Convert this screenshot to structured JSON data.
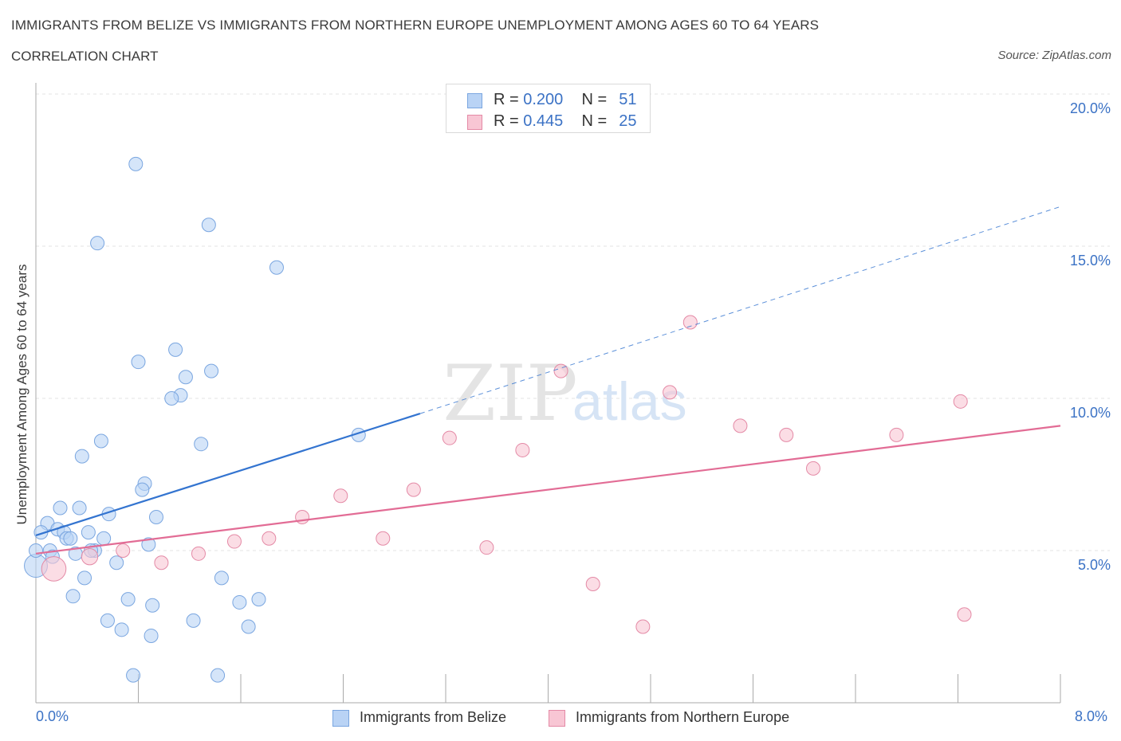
{
  "header": {
    "title": "IMMIGRANTS FROM BELIZE VS IMMIGRANTS FROM NORTHERN EUROPE UNEMPLOYMENT AMONG AGES 60 TO 64 YEARS",
    "subtitle": "CORRELATION CHART",
    "source": "Source: ZipAtlas.com"
  },
  "legend": {
    "rows": [
      {
        "r_label": "R =",
        "r_value": "0.200",
        "n_label": "N =",
        "n_value": "51"
      },
      {
        "r_label": "R =",
        "r_value": "0.445",
        "n_label": "N =",
        "n_value": "25"
      }
    ]
  },
  "bottom_legend": {
    "series1": "Immigrants from Belize",
    "series2": "Immigrants from Northern Europe"
  },
  "watermark": {
    "zip": "ZIP",
    "atlas": "atlas"
  },
  "colors": {
    "blue_fill": "#b9d3f5",
    "blue_stroke": "#7aa6e0",
    "blue_line": "#3374d0",
    "pink_fill": "#f8c6d4",
    "pink_stroke": "#e48aa6",
    "pink_line": "#e26c95",
    "tick_text": "#3b72c5",
    "grid": "#e3e3e3"
  },
  "chart_data": {
    "type": "scatter",
    "title": "IMMIGRANTS FROM BELIZE VS IMMIGRANTS FROM NORTHERN EUROPE UNEMPLOYMENT AMONG AGES 60 TO 64 YEARS",
    "xlabel": "",
    "ylabel": "Unemployment Among Ages 60 to 64 years",
    "xlim": [
      0,
      8
    ],
    "ylim": [
      0,
      20
    ],
    "x_tick_labels": [
      "0.0%",
      "8.0%"
    ],
    "y_tick_labels": [
      "5.0%",
      "10.0%",
      "15.0%",
      "20.0%"
    ],
    "y_ticks": [
      5,
      10,
      15,
      20
    ],
    "legend_position": "top-center",
    "series": [
      {
        "name": "Immigrants from Belize",
        "color": "blue",
        "trend": {
          "x0": 0.0,
          "y0": 5.5,
          "x1": 3.0,
          "y1": 9.5,
          "extend_to_x": 8.0,
          "extend_to_y": 16.3
        },
        "points": [
          {
            "x": 0.78,
            "y": 17.7,
            "s": 1
          },
          {
            "x": 1.35,
            "y": 15.7,
            "s": 1
          },
          {
            "x": 0.48,
            "y": 15.1,
            "s": 1
          },
          {
            "x": 1.88,
            "y": 14.3,
            "s": 1
          },
          {
            "x": 1.09,
            "y": 11.6,
            "s": 1
          },
          {
            "x": 0.8,
            "y": 11.2,
            "s": 1
          },
          {
            "x": 1.37,
            "y": 10.9,
            "s": 1
          },
          {
            "x": 1.17,
            "y": 10.7,
            "s": 1
          },
          {
            "x": 1.13,
            "y": 10.1,
            "s": 1
          },
          {
            "x": 1.06,
            "y": 10.0,
            "s": 1
          },
          {
            "x": 2.52,
            "y": 8.8,
            "s": 1
          },
          {
            "x": 0.51,
            "y": 8.6,
            "s": 1
          },
          {
            "x": 1.29,
            "y": 8.5,
            "s": 1
          },
          {
            "x": 0.36,
            "y": 8.1,
            "s": 1
          },
          {
            "x": 0.85,
            "y": 7.2,
            "s": 1
          },
          {
            "x": 0.83,
            "y": 7.0,
            "s": 1
          },
          {
            "x": 0.19,
            "y": 6.4,
            "s": 1
          },
          {
            "x": 0.34,
            "y": 6.4,
            "s": 1
          },
          {
            "x": 0.57,
            "y": 6.2,
            "s": 1
          },
          {
            "x": 0.94,
            "y": 6.1,
            "s": 1
          },
          {
            "x": 0.09,
            "y": 5.9,
            "s": 1
          },
          {
            "x": 0.17,
            "y": 5.7,
            "s": 1
          },
          {
            "x": 0.22,
            "y": 5.6,
            "s": 1
          },
          {
            "x": 0.04,
            "y": 5.6,
            "s": 1
          },
          {
            "x": 0.41,
            "y": 5.6,
            "s": 1
          },
          {
            "x": 0.24,
            "y": 5.4,
            "s": 1
          },
          {
            "x": 0.27,
            "y": 5.4,
            "s": 1
          },
          {
            "x": 0.53,
            "y": 5.4,
            "s": 1
          },
          {
            "x": 0.88,
            "y": 5.2,
            "s": 1
          },
          {
            "x": 0.11,
            "y": 5.0,
            "s": 1
          },
          {
            "x": 0.46,
            "y": 5.0,
            "s": 1
          },
          {
            "x": 0.43,
            "y": 5.0,
            "s": 1
          },
          {
            "x": 0.31,
            "y": 4.9,
            "s": 1
          },
          {
            "x": 0.13,
            "y": 4.8,
            "s": 1
          },
          {
            "x": 0.63,
            "y": 4.6,
            "s": 1
          },
          {
            "x": 0.0,
            "y": 4.5,
            "s": 1.7
          },
          {
            "x": 1.45,
            "y": 4.1,
            "s": 1
          },
          {
            "x": 0.38,
            "y": 4.1,
            "s": 1
          },
          {
            "x": 0.29,
            "y": 3.5,
            "s": 1
          },
          {
            "x": 0.72,
            "y": 3.4,
            "s": 1
          },
          {
            "x": 1.74,
            "y": 3.4,
            "s": 1
          },
          {
            "x": 1.59,
            "y": 3.3,
            "s": 1
          },
          {
            "x": 0.91,
            "y": 3.2,
            "s": 1
          },
          {
            "x": 0.56,
            "y": 2.7,
            "s": 1
          },
          {
            "x": 1.23,
            "y": 2.7,
            "s": 1
          },
          {
            "x": 1.66,
            "y": 2.5,
            "s": 1
          },
          {
            "x": 0.67,
            "y": 2.4,
            "s": 1
          },
          {
            "x": 0.9,
            "y": 2.2,
            "s": 1
          },
          {
            "x": 0.76,
            "y": 0.9,
            "s": 1
          },
          {
            "x": 1.42,
            "y": 0.9,
            "s": 1
          },
          {
            "x": 0.0,
            "y": 5.0,
            "s": 1
          }
        ]
      },
      {
        "name": "Immigrants from Northern Europe",
        "color": "pink",
        "trend": {
          "x0": 0.0,
          "y0": 4.9,
          "x1": 8.0,
          "y1": 9.1
        },
        "points": [
          {
            "x": 5.11,
            "y": 12.5,
            "s": 1
          },
          {
            "x": 4.1,
            "y": 10.9,
            "s": 1
          },
          {
            "x": 4.95,
            "y": 10.2,
            "s": 1
          },
          {
            "x": 7.22,
            "y": 9.9,
            "s": 1
          },
          {
            "x": 5.5,
            "y": 9.1,
            "s": 1
          },
          {
            "x": 5.86,
            "y": 8.8,
            "s": 1
          },
          {
            "x": 6.72,
            "y": 8.8,
            "s": 1
          },
          {
            "x": 3.23,
            "y": 8.7,
            "s": 1
          },
          {
            "x": 3.8,
            "y": 8.3,
            "s": 1
          },
          {
            "x": 6.07,
            "y": 7.7,
            "s": 1
          },
          {
            "x": 2.95,
            "y": 7.0,
            "s": 1
          },
          {
            "x": 2.38,
            "y": 6.8,
            "s": 1
          },
          {
            "x": 2.08,
            "y": 6.1,
            "s": 1
          },
          {
            "x": 2.71,
            "y": 5.4,
            "s": 1
          },
          {
            "x": 1.82,
            "y": 5.4,
            "s": 1
          },
          {
            "x": 1.55,
            "y": 5.3,
            "s": 1
          },
          {
            "x": 3.52,
            "y": 5.1,
            "s": 1
          },
          {
            "x": 0.68,
            "y": 5.0,
            "s": 1
          },
          {
            "x": 1.27,
            "y": 4.9,
            "s": 1
          },
          {
            "x": 0.42,
            "y": 4.8,
            "s": 1.2
          },
          {
            "x": 0.98,
            "y": 4.6,
            "s": 1
          },
          {
            "x": 0.14,
            "y": 4.4,
            "s": 1.8
          },
          {
            "x": 4.35,
            "y": 3.9,
            "s": 1
          },
          {
            "x": 7.25,
            "y": 2.9,
            "s": 1
          },
          {
            "x": 4.74,
            "y": 2.5,
            "s": 1
          }
        ]
      }
    ]
  }
}
